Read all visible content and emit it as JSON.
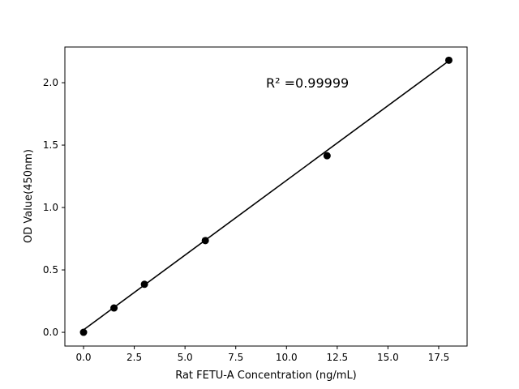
{
  "chart_data": {
    "type": "scatter",
    "title": "",
    "xlabel": "Rat FETU-A Concentration (ng/mL)",
    "ylabel": "OD Value(450nm)",
    "xlim": [
      -0.92,
      18.9
    ],
    "ylim": [
      -0.11,
      2.286
    ],
    "xticks": [
      "0.0",
      "2.5",
      "5.0",
      "7.5",
      "10.0",
      "12.5",
      "15.0",
      "17.5"
    ],
    "yticks": [
      "0.0",
      "0.5",
      "1.0",
      "1.5",
      "2.0"
    ],
    "grid": false,
    "points": {
      "x": [
        0,
        1.5,
        3,
        6,
        12,
        18
      ],
      "y": [
        0.0,
        0.195,
        0.385,
        0.735,
        1.415,
        2.18
      ]
    },
    "fit_line": {
      "x": [
        0,
        18
      ],
      "y": [
        0.02,
        2.175
      ]
    },
    "annotation": "R² =0.99999",
    "colors": {
      "points": "#000000",
      "line": "#000000"
    }
  }
}
